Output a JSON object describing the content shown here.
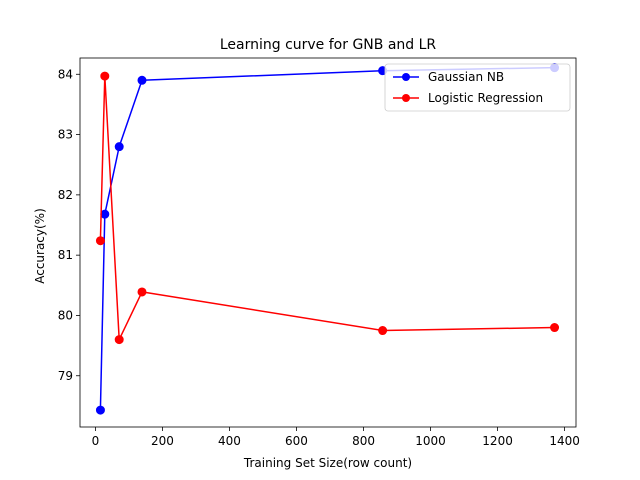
{
  "chart_data": {
    "type": "line",
    "title": "Learning curve for GNB and LR",
    "xlabel": "Training Set Size(row count)",
    "ylabel": "Accuracy(%)",
    "xlim": [
      -46,
      1434
    ],
    "ylim": [
      78.15,
      84.27
    ],
    "xticks": [
      0,
      200,
      400,
      600,
      800,
      1000,
      1200,
      1400
    ],
    "yticks": [
      79,
      80,
      81,
      82,
      83,
      84
    ],
    "grid": false,
    "legend_position": "top-right",
    "series": [
      {
        "name": "Gaussian NB",
        "color": "#0000ff",
        "x": [
          15,
          28,
          71,
          139,
          857,
          1370
        ],
        "y": [
          78.43,
          81.68,
          82.8,
          83.9,
          84.06,
          84.11
        ]
      },
      {
        "name": "Logistic Regression",
        "color": "#ff0000",
        "x": [
          15,
          28,
          71,
          139,
          857,
          1370
        ],
        "y": [
          81.24,
          83.97,
          79.6,
          80.39,
          79.75,
          79.8
        ]
      }
    ]
  }
}
